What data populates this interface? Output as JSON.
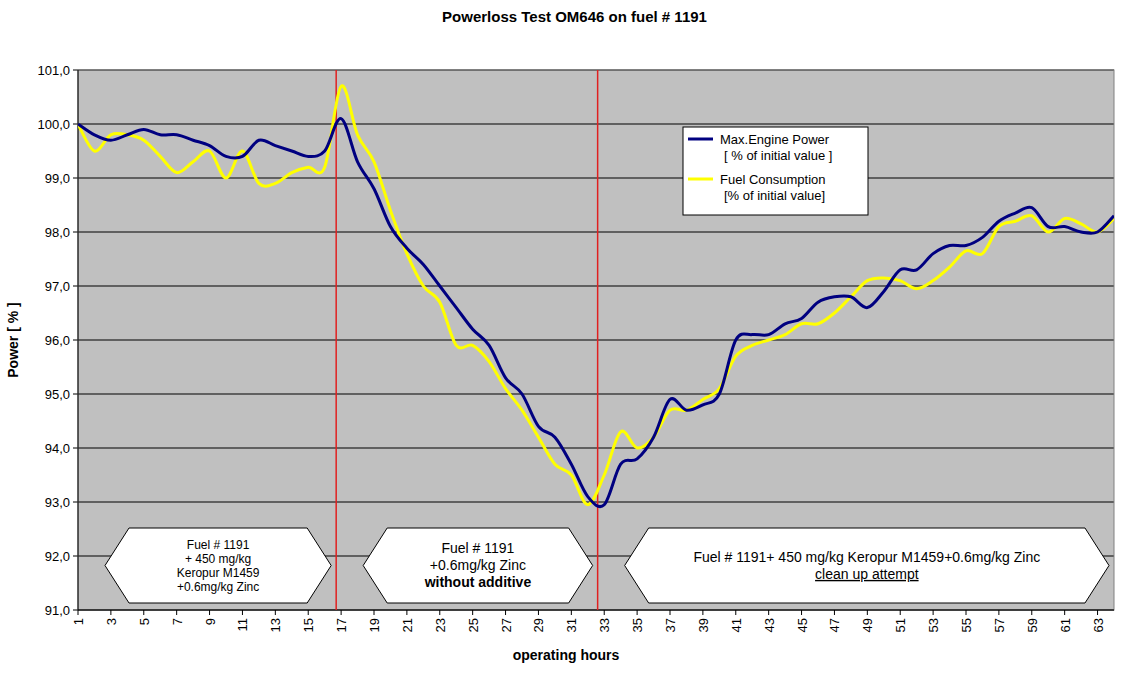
{
  "chart_data": {
    "type": "line",
    "title": "Powerloss Test OM646 on fuel # 1191",
    "x_label": "operating hours",
    "y_label": "Power [ % ]",
    "x": [
      1,
      2,
      3,
      4,
      5,
      6,
      7,
      8,
      9,
      10,
      11,
      12,
      13,
      14,
      15,
      16,
      17,
      18,
      19,
      20,
      21,
      22,
      23,
      24,
      25,
      26,
      27,
      28,
      29,
      30,
      31,
      32,
      33,
      34,
      35,
      36,
      37,
      38,
      39,
      40,
      41,
      42,
      43,
      44,
      45,
      46,
      47,
      48,
      49,
      50,
      51,
      52,
      53,
      54,
      55,
      56,
      57,
      58,
      59,
      60,
      61,
      62,
      63,
      64
    ],
    "series": [
      {
        "name": "Max.Engine Power\n[ % of initial value ]",
        "color": "#000080",
        "values": [
          100.0,
          99.8,
          99.7,
          99.8,
          99.9,
          99.8,
          99.8,
          99.7,
          99.6,
          99.4,
          99.4,
          99.7,
          99.6,
          99.5,
          99.4,
          99.5,
          100.1,
          99.3,
          98.8,
          98.1,
          97.7,
          97.4,
          97.0,
          96.6,
          96.2,
          95.9,
          95.3,
          95.0,
          94.4,
          94.2,
          93.7,
          93.1,
          92.95,
          93.7,
          93.8,
          94.2,
          94.9,
          94.7,
          94.8,
          95.0,
          96.0,
          96.1,
          96.1,
          96.3,
          96.4,
          96.7,
          96.8,
          96.8,
          96.6,
          96.9,
          97.3,
          97.3,
          97.6,
          97.75,
          97.75,
          97.9,
          98.2,
          98.35,
          98.45,
          98.1,
          98.1,
          98.0,
          98.0,
          98.3
        ]
      },
      {
        "name": "Fuel Consumption\n[% of initial value]",
        "color": "#ffff00",
        "values": [
          100.0,
          99.5,
          99.8,
          99.8,
          99.7,
          99.4,
          99.1,
          99.3,
          99.5,
          99.0,
          99.5,
          98.9,
          98.9,
          99.1,
          99.2,
          99.2,
          100.7,
          99.8,
          99.3,
          98.4,
          97.6,
          97.0,
          96.7,
          95.9,
          95.9,
          95.6,
          95.1,
          94.7,
          94.2,
          93.7,
          93.5,
          92.95,
          93.5,
          94.3,
          94.0,
          94.2,
          94.7,
          94.7,
          94.9,
          95.1,
          95.7,
          95.9,
          96.0,
          96.1,
          96.3,
          96.3,
          96.5,
          96.8,
          97.1,
          97.15,
          97.1,
          96.95,
          97.1,
          97.35,
          97.65,
          97.6,
          98.1,
          98.2,
          98.3,
          98.0,
          98.25,
          98.15,
          98.0,
          98.25
        ]
      }
    ],
    "xlim": [
      1,
      64
    ],
    "xticks": [
      1,
      3,
      5,
      7,
      9,
      11,
      13,
      15,
      17,
      19,
      21,
      23,
      25,
      27,
      29,
      31,
      33,
      35,
      37,
      39,
      41,
      43,
      45,
      47,
      49,
      51,
      53,
      55,
      57,
      59,
      61,
      63
    ],
    "ylim": [
      91,
      101
    ],
    "yticks": [
      {
        "value": 91,
        "label": "91,0"
      },
      {
        "value": 92,
        "label": "92,0"
      },
      {
        "value": 93,
        "label": "93,0"
      },
      {
        "value": 94,
        "label": "94,0"
      },
      {
        "value": 95,
        "label": "95,0"
      },
      {
        "value": 96,
        "label": "96,0"
      },
      {
        "value": 97,
        "label": "97,0"
      },
      {
        "value": 98,
        "label": "98,0"
      },
      {
        "value": 99,
        "label": "99,0"
      },
      {
        "value": 100,
        "label": "100,0"
      },
      {
        "value": 101,
        "label": "101,0"
      }
    ],
    "grid": true,
    "legend": "top-right",
    "vlines": [
      {
        "x": 16.7,
        "color": "#e02020"
      },
      {
        "x": 32.6,
        "color": "#e02020"
      }
    ],
    "annotations": [
      {
        "lines": [
          "Fuel # 1191",
          "+ 450 mg/kg",
          "Keropur M1459",
          "+0.6mg/kg Zinc"
        ]
      },
      {
        "lines": [
          "Fuel # 1191",
          "+0.6mg/kg Zinc",
          "without additive"
        ]
      },
      {
        "lines": [
          "Fuel # 1191+ 450 mg/kg Keropur M1459+0.6mg/kg Zinc",
          "clean up attempt"
        ]
      }
    ]
  }
}
